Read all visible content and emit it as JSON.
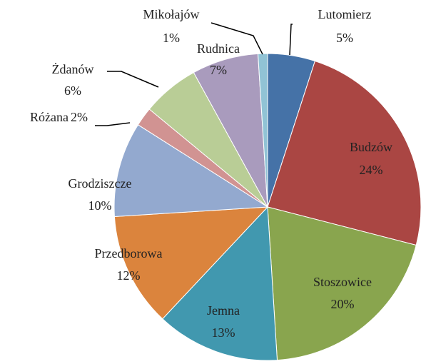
{
  "chart_data": {
    "type": "pie",
    "categories": [
      "Lutomierz",
      "Budzów",
      "Stoszowice",
      "Jemna",
      "Przedborowa",
      "Grodziszcze",
      "Różana",
      "Żdanów",
      "Rudnica",
      "Mikołajów"
    ],
    "values": [
      5,
      24,
      20,
      13,
      12,
      10,
      2,
      6,
      7,
      1
    ],
    "value_labels": [
      "5%",
      "24%",
      "20%",
      "13%",
      "12%",
      "10%",
      "2%",
      "6%",
      "7%",
      "1%"
    ],
    "colors": [
      "#4572a7",
      "#aa4643",
      "#89a54e",
      "#4198af",
      "#db843d",
      "#93a9cf",
      "#d19392",
      "#b9cd96",
      "#a99bbd",
      "#91c3d5"
    ]
  }
}
